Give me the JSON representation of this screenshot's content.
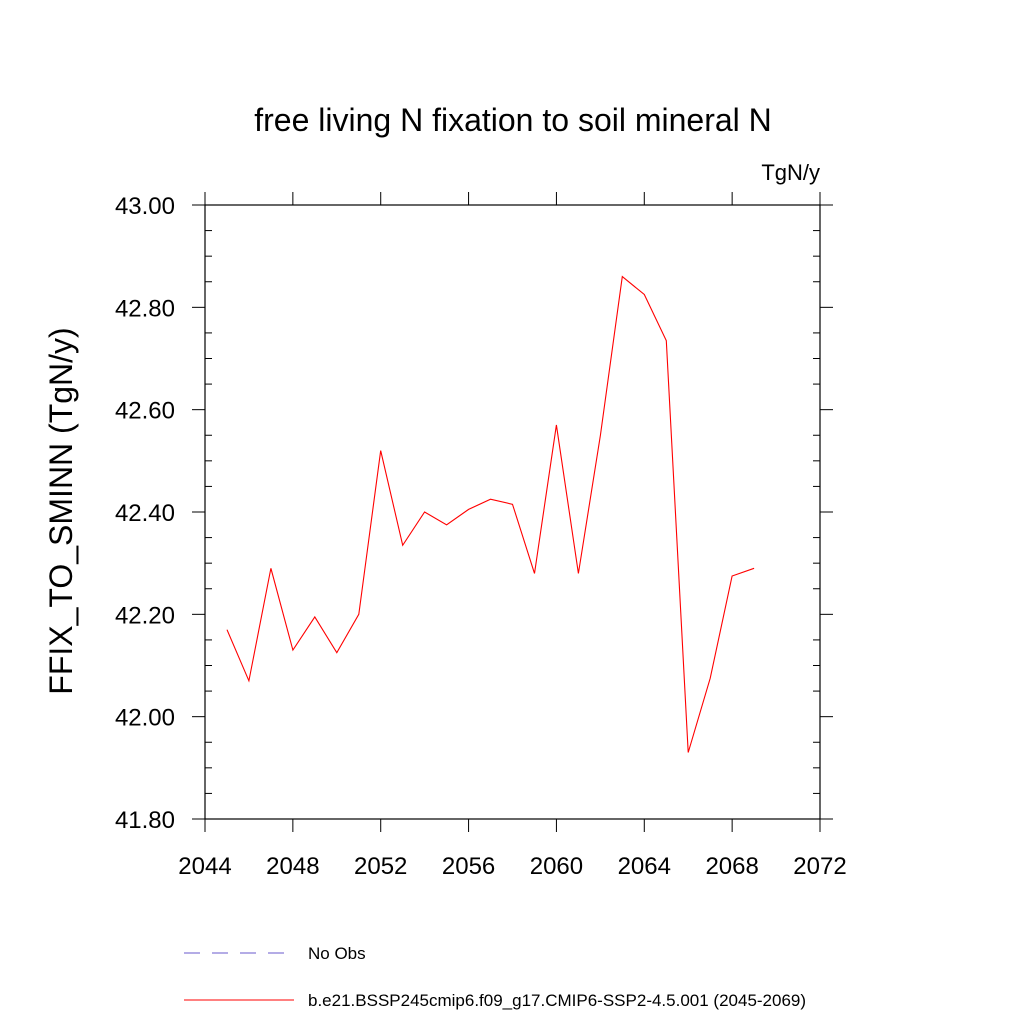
{
  "chart_data": {
    "type": "line",
    "title": "free living N fixation to soil mineral N",
    "units": "TgN/y",
    "ylabel": "FFIX_TO_SMINN  (TgN/y)",
    "xlabel": "",
    "xlim": [
      2044,
      2072
    ],
    "ylim": [
      41.8,
      43.0
    ],
    "x_ticks": [
      2044,
      2048,
      2052,
      2056,
      2060,
      2064,
      2068,
      2072
    ],
    "x_tick_labels": [
      "2044",
      "2048",
      "2052",
      "2056",
      "2060",
      "2064",
      "2068",
      "2072"
    ],
    "y_ticks": [
      41.8,
      42.0,
      42.2,
      42.4,
      42.6,
      42.8,
      43.0
    ],
    "y_tick_labels": [
      "41.80",
      "42.00",
      "42.20",
      "42.40",
      "42.60",
      "42.80",
      "43.00"
    ],
    "grid": false,
    "legend_position": "bottom",
    "series": [
      {
        "name": "b.e21.BSSP245cmip6.f09_g17.CMIP6-SSP2-4.5.001 (2045-2069)",
        "color": "#ff0000",
        "style": "solid",
        "x": [
          2045,
          2046,
          2047,
          2048,
          2049,
          2050,
          2051,
          2052,
          2053,
          2054,
          2055,
          2056,
          2057,
          2058,
          2059,
          2060,
          2061,
          2062,
          2063,
          2064,
          2065,
          2066,
          2067,
          2068,
          2069
        ],
        "y": [
          42.17,
          42.07,
          42.29,
          42.13,
          42.195,
          42.125,
          42.2,
          42.52,
          42.335,
          42.4,
          42.375,
          42.405,
          42.425,
          42.415,
          42.28,
          42.57,
          42.28,
          42.55,
          42.86,
          42.825,
          42.735,
          41.93,
          42.075,
          42.275,
          42.29
        ]
      }
    ],
    "legend": [
      {
        "label": "No Obs",
        "color": "#6a5acd",
        "style": "dashed"
      },
      {
        "label": "b.e21.BSSP245cmip6.f09_g17.CMIP6-SSP2-4.5.001 (2045-2069)",
        "color": "#ff0000",
        "style": "solid"
      }
    ]
  }
}
